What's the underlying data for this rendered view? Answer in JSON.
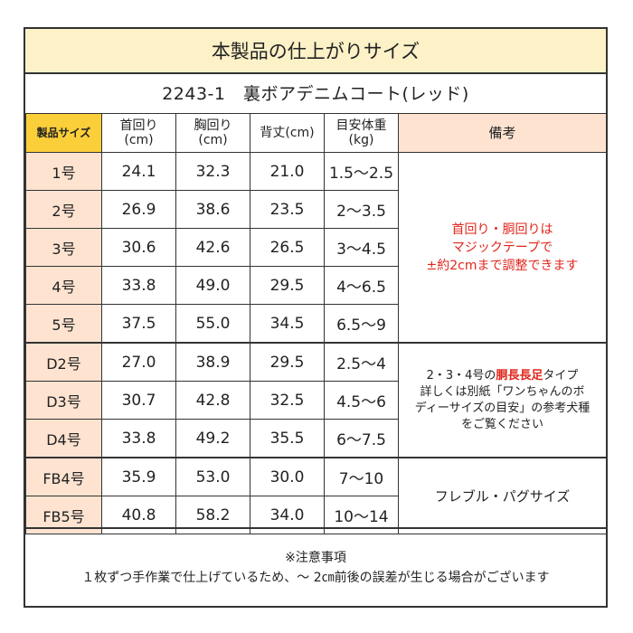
{
  "title": "本製品の仕上がりサイズ",
  "product": "2243-1　裏ボアデニムコート(レッド)",
  "headers": {
    "size": "製品サイズ",
    "neck": [
      "首回り",
      "(cm)"
    ],
    "chest": [
      "胸回り",
      "(cm)"
    ],
    "back": "背丈(cm)",
    "weight": [
      "目安体重",
      "(kg)"
    ],
    "notes": "備考"
  },
  "rows": [
    {
      "size": "1号",
      "neck": "24.1",
      "chest": "32.3",
      "back": "21.0",
      "weight": "1.5〜2.5"
    },
    {
      "size": "2号",
      "neck": "26.9",
      "chest": "38.6",
      "back": "23.5",
      "weight": "2〜3.5"
    },
    {
      "size": "3号",
      "neck": "30.6",
      "chest": "42.6",
      "back": "26.5",
      "weight": "3〜4.5"
    },
    {
      "size": "4号",
      "neck": "33.8",
      "chest": "49.0",
      "back": "29.5",
      "weight": "4〜6.5"
    },
    {
      "size": "5号",
      "neck": "37.5",
      "chest": "55.0",
      "back": "34.5",
      "weight": "6.5〜9"
    },
    {
      "size": "D2号",
      "neck": "27.0",
      "chest": "38.9",
      "back": "29.5",
      "weight": "2.5〜4"
    },
    {
      "size": "D3号",
      "neck": "30.7",
      "chest": "42.8",
      "back": "32.5",
      "weight": "4.5〜6"
    },
    {
      "size": "D4号",
      "neck": "33.8",
      "chest": "49.2",
      "back": "35.5",
      "weight": "6〜7.5"
    },
    {
      "size": "FB4号",
      "neck": "35.9",
      "chest": "53.0",
      "back": "30.0",
      "weight": "7〜10"
    },
    {
      "size": "FB5号",
      "neck": "40.8",
      "chest": "58.2",
      "back": "34.0",
      "weight": "10〜14"
    }
  ],
  "notes": {
    "group1": [
      "首回り・胴回りは",
      "マジックテープで",
      "±約2cmまで調整できます"
    ],
    "group2": {
      "line1_prefix": "2・3・4号の",
      "line1_highlight": "胴長長足",
      "line1_suffix": "タイプ",
      "line2": "詳しくは別紙「ワンちゃんのボ",
      "line3": "ディーサイズの目安」の参考犬種",
      "line4": "をご覧ください"
    },
    "group3": "フレブル・パグサイズ"
  },
  "footer": {
    "heading": "※注意事項",
    "text": "１枚ずつ手作業で仕上げているため、～ 2㎝前後の誤差が生じる場合がございます"
  },
  "colors": {
    "title_bg": "#fcf1c7",
    "size_header_bg": "#fbcf3a",
    "size_cell_bg": "#fde3d0",
    "note_red": "#e0261c"
  }
}
